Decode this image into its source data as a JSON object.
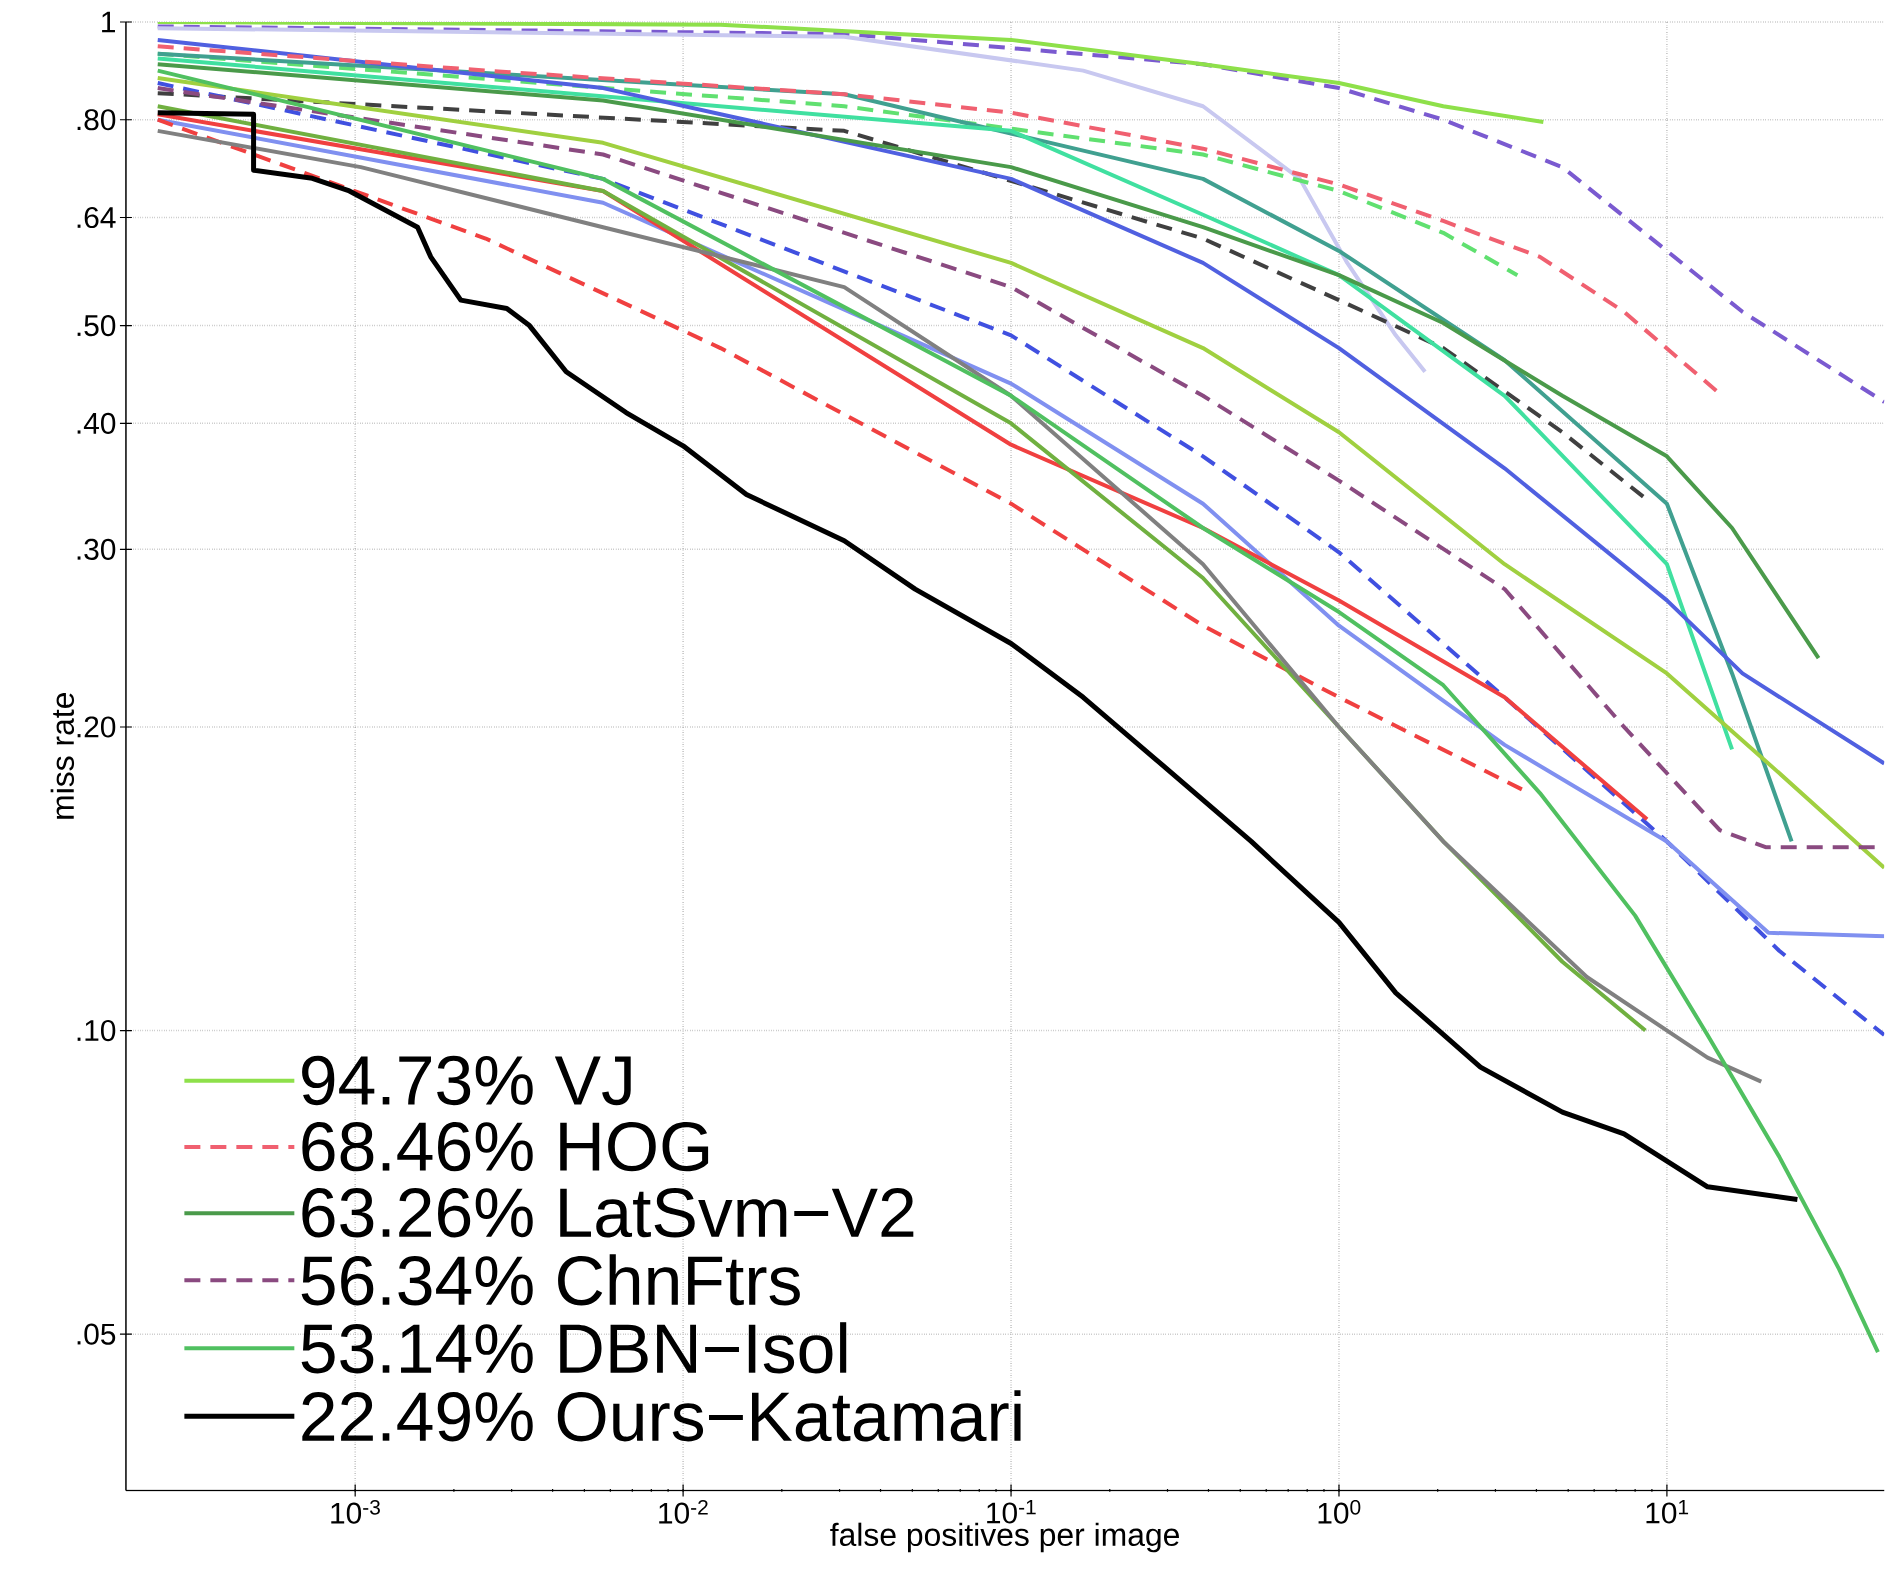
{
  "chart_data": {
    "type": "line",
    "xlabel": "false positives per image",
    "ylabel": "miss rate",
    "log": "xy",
    "grid": true,
    "legend": "bottom left",
    "xlim": [
      0.0002,
      46
    ],
    "ylim": [
      0.035,
      1
    ],
    "xticks": [
      {
        "value": 0.001,
        "label": "10$^{-3}$"
      },
      {
        "value": 0.01,
        "label": "10$^{-2}$"
      },
      {
        "value": 0.1,
        "label": "10$^{-1}$"
      },
      {
        "value": 1,
        "label": "10$^{0}$"
      },
      {
        "value": 10,
        "label": "10$^{1}$"
      }
    ],
    "yticks": [
      {
        "value": 0.05,
        "label": ".05"
      },
      {
        "value": 0.1,
        "label": ".10"
      },
      {
        "value": 0.2,
        "label": ".20"
      },
      {
        "value": 0.3,
        "label": ".30"
      },
      {
        "value": 0.4,
        "label": ".40"
      },
      {
        "value": 0.5,
        "label": ".50"
      },
      {
        "value": 0.64,
        "label": ".64"
      },
      {
        "value": 0.8,
        "label": ".80"
      },
      1
    ],
    "series": [
      {
        "color": "#7a5ad0",
        "line_style": "dashed",
        "x": [
          0.00025,
          0.031,
          0.385,
          1,
          2.08,
          4.8,
          10,
          17,
          46
        ],
        "values": [
          0.99,
          0.973,
          0.908,
          0.86,
          0.8,
          0.718,
          0.593,
          0.516,
          0.42
        ]
      },
      {
        "color": "#c8c8f0",
        "line_style": "solid",
        "x": [
          0.00025,
          0.031,
          0.166,
          0.385,
          0.76,
          1.06,
          1.49,
          1.83
        ],
        "values": [
          0.986,
          0.967,
          0.895,
          0.825,
          0.699,
          0.577,
          0.489,
          0.45
        ]
      },
      {
        "color": "#60e070",
        "line_style": "dashed",
        "x": [
          0.00025,
          0.031,
          0.385,
          1,
          2.08,
          3.5
        ],
        "values": [
          0.93,
          0.825,
          0.739,
          0.68,
          0.618,
          0.561
        ]
      },
      {
        "color": "#404040",
        "line_style": "dashed",
        "x": [
          0.00025,
          0.031,
          0.385,
          1,
          2.08,
          4.8,
          8.6
        ],
        "values": [
          0.85,
          0.78,
          0.61,
          0.53,
          0.475,
          0.392,
          0.337
        ]
      },
      {
        "color": "#40a090",
        "line_style": "solid",
        "x": [
          0.00025,
          0.031,
          0.385,
          1,
          3.2,
          10,
          15.8,
          24
        ],
        "values": [
          0.93,
          0.848,
          0.699,
          0.593,
          0.462,
          0.333,
          0.226,
          0.154
        ]
      },
      {
        "color": "#40e0a0",
        "line_style": "solid",
        "x": [
          0.00025,
          0.1,
          0.385,
          1,
          3.2,
          10,
          15.8
        ],
        "values": [
          0.92,
          0.78,
          0.644,
          0.561,
          0.426,
          0.29,
          0.19
        ]
      },
      {
        "color": "#5060e0",
        "line_style": "solid",
        "x": [
          0.00025,
          0.0057,
          0.1,
          0.385,
          1,
          3.2,
          10,
          17,
          46
        ],
        "values": [
          0.96,
          0.86,
          0.699,
          0.577,
          0.475,
          0.361,
          0.267,
          0.226,
          0.184
        ]
      },
      {
        "color": "#a0d040",
        "line_style": "solid",
        "x": [
          0.00025,
          0.0057,
          0.1,
          0.385,
          1,
          3.2,
          10,
          22,
          46
        ],
        "values": [
          0.88,
          0.759,
          0.577,
          0.475,
          0.392,
          0.29,
          0.226,
          0.18,
          0.145
        ]
      },
      {
        "color": "#4050e0",
        "line_style": "dashed",
        "x": [
          0.00025,
          0.0057,
          0.1,
          0.385,
          1,
          3.2,
          10,
          22,
          46
        ],
        "values": [
          0.87,
          0.699,
          0.489,
          0.371,
          0.298,
          0.214,
          0.154,
          0.12,
          0.099
        ]
      },
      {
        "color": "#8090f0",
        "line_style": "solid",
        "x": [
          0.00025,
          0.0057,
          0.1,
          0.385,
          1,
          3.2,
          10,
          20.4,
          46
        ],
        "values": [
          0.8,
          0.662,
          0.438,
          0.333,
          0.252,
          0.192,
          0.154,
          0.125,
          0.124
        ]
      },
      {
        "color": "#f04040",
        "line_style": "solid",
        "x": [
          0.00025,
          0.0057,
          0.1,
          0.385,
          1,
          3.2,
          8.7
        ],
        "values": [
          0.81,
          0.68,
          0.381,
          0.315,
          0.267,
          0.214,
          0.162
        ]
      },
      {
        "color": "#f04040",
        "line_style": "dashed",
        "x": [
          0.00025,
          0.0025,
          0.013,
          0.1,
          0.385,
          1,
          3.8
        ],
        "values": [
          0.8,
          0.61,
          0.475,
          0.333,
          0.252,
          0.214,
          0.172
        ]
      },
      {
        "color": "#70b040",
        "line_style": "solid",
        "x": [
          0.00025,
          0.0057,
          0.1,
          0.385,
          1,
          2.08,
          4.8,
          8.6
        ],
        "values": [
          0.825,
          0.68,
          0.4,
          0.281,
          0.2,
          0.154,
          0.117,
          0.1
        ]
      },
      {
        "color": "#808080",
        "line_style": "solid",
        "x": [
          0.00025,
          0.00104,
          0.0057,
          0.031,
          0.1,
          0.385,
          1,
          2.08,
          5.7,
          13.3,
          19.4
        ],
        "values": [
          0.78,
          0.718,
          0.626,
          0.546,
          0.426,
          0.29,
          0.2,
          0.154,
          0.113,
          0.094,
          0.089
        ]
      },
      {
        "name": "94.73% VJ",
        "color": "#8ee04a",
        "line_style": "solid",
        "x": [
          0.00025,
          0.013,
          0.1,
          0.385,
          1,
          2.08,
          4.2
        ],
        "values": [
          1,
          0.994,
          0.96,
          0.908,
          0.87,
          0.825,
          0.796
        ]
      },
      {
        "name": "68.46% HOG",
        "color": "#f06070",
        "line_style": "dashed",
        "x": [
          0.00025,
          0.0025,
          0.031,
          0.1,
          0.385,
          1,
          2.08,
          4.1,
          7.4,
          14.5
        ],
        "values": [
          0.946,
          0.895,
          0.848,
          0.813,
          0.749,
          0.69,
          0.635,
          0.585,
          0.516,
          0.428
        ]
      },
      {
        "name": "63.26% LatSvm−V2",
        "color": "#4a9a4a",
        "line_style": "solid",
        "x": [
          0.00025,
          0.0057,
          0.1,
          0.385,
          1,
          2.08,
          4.8,
          10,
          15.8,
          29
        ],
        "values": [
          0.908,
          0.836,
          0.718,
          0.626,
          0.561,
          0.503,
          0.426,
          0.371,
          0.315,
          0.234
        ]
      },
      {
        "name": "56.34% ChnFtrs",
        "color": "#8a4a80",
        "line_style": "dashed",
        "x": [
          0.00025,
          0.0057,
          0.1,
          0.385,
          1,
          3.2,
          7.4,
          14.5,
          20,
          46
        ],
        "values": [
          0.86,
          0.739,
          0.546,
          0.426,
          0.351,
          0.274,
          0.2,
          0.158,
          0.152,
          0.152
        ]
      },
      {
        "name": "53.14% DBN−Isol",
        "color": "#50c060",
        "line_style": "solid",
        "x": [
          0.00025,
          0.0057,
          0.1,
          0.385,
          1,
          2.08,
          4.1,
          8,
          13.3,
          22,
          33.5,
          44
        ],
        "values": [
          0.895,
          0.699,
          0.426,
          0.315,
          0.26,
          0.22,
          0.172,
          0.13,
          0.099,
          0.075,
          0.058,
          0.048
        ]
      },
      {
        "name": "22.49% Ours−Katamari",
        "color": "#000000",
        "line_style": "solid",
        "x": [
          0.00025,
          0.00049,
          0.00049,
          0.00074,
          0.00096,
          0.00155,
          0.0017,
          0.0021,
          0.0029,
          0.0034,
          0.0044,
          0.0067,
          0.01,
          0.0156,
          0.031,
          0.051,
          0.1,
          0.166,
          0.275,
          0.54,
          1,
          1.49,
          2.7,
          4.8,
          7.4,
          13.3,
          25
        ],
        "values": [
          0.813,
          0.81,
          0.713,
          0.7,
          0.68,
          0.626,
          0.585,
          0.53,
          0.52,
          0.5,
          0.45,
          0.41,
          0.38,
          0.34,
          0.306,
          0.274,
          0.242,
          0.214,
          0.186,
          0.154,
          0.128,
          0.109,
          0.092,
          0.083,
          0.079,
          0.07,
          0.068
        ]
      }
    ]
  }
}
